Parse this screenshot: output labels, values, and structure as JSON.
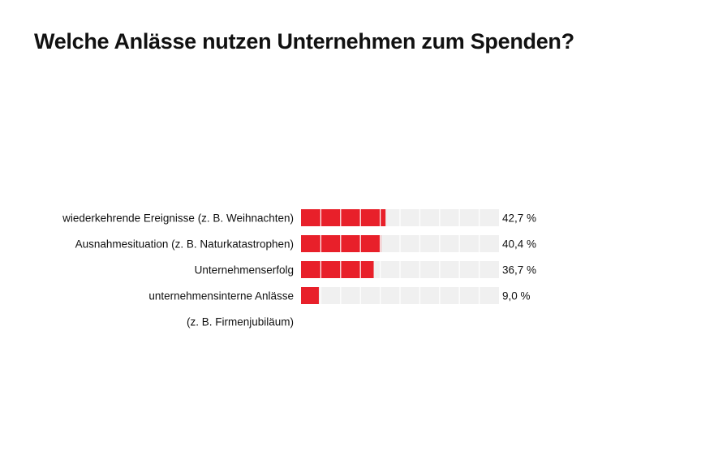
{
  "title": "Welche Anlässe nutzen Unternehmen zum Spenden?",
  "colors": {
    "bar": "#e8202a",
    "track": "#f0f0f0",
    "segment_divider": "#ffffff"
  },
  "chart_data": {
    "type": "bar",
    "orientation": "horizontal",
    "categories": [
      [
        "wiederkehrende Ereignisse (z. B. Weihnachten)"
      ],
      [
        "Ausnahmesituation (z. B. Naturkatastrophen)"
      ],
      [
        "Unternehmenserfolg"
      ],
      [
        "unternehmensinterne Anlässe",
        "(z. B. Firmenjubiläum)"
      ]
    ],
    "values": [
      42.7,
      40.4,
      36.7,
      9.0
    ],
    "value_labels": [
      "42,7 %",
      "40,4 %",
      "36,7 %",
      "9,0 %"
    ],
    "xlim": [
      0,
      100
    ],
    "segments": 10,
    "unit": "%"
  }
}
